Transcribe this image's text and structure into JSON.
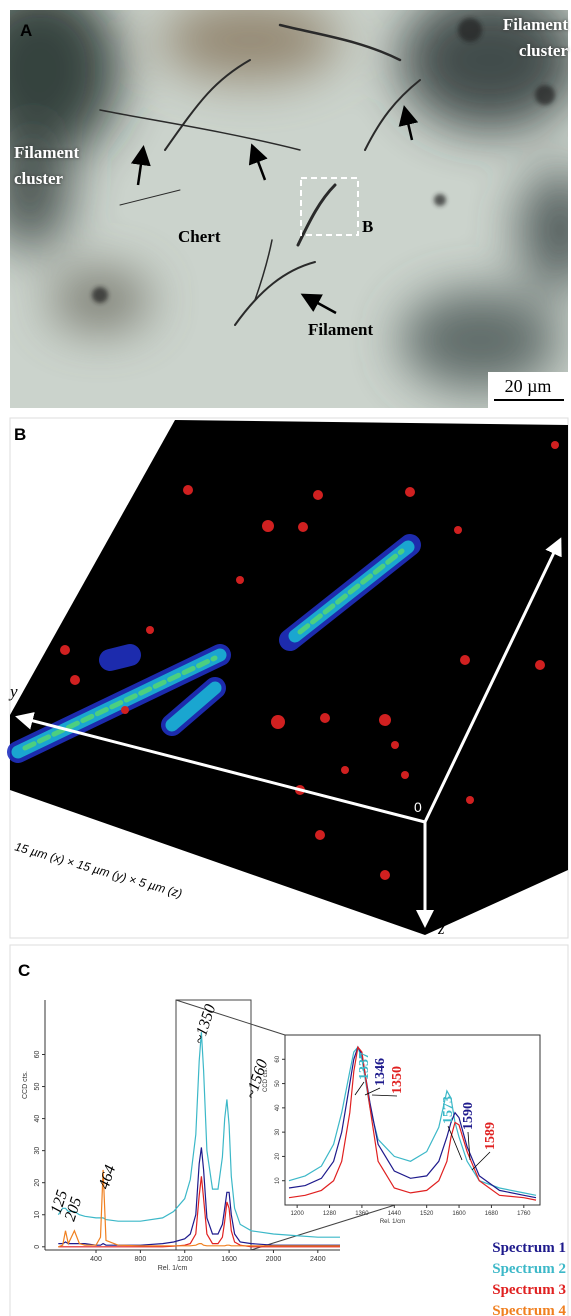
{
  "panel_a": {
    "label": "A",
    "cluster_labels": [
      "Filament cluster",
      "Filament cluster"
    ],
    "chert": "Chert",
    "filament": "Filament",
    "box_label": "B",
    "scale_bar": "20 µm"
  },
  "panel_b": {
    "label": "B",
    "x_axis": "x",
    "y_axis": "y",
    "z_axis": "z",
    "origin": "0",
    "caption": "15 µm (x) × 15 µm (y) × 5 µm (z)"
  },
  "panel_c": {
    "label": "C"
  },
  "chart_data": [
    {
      "type": "line",
      "x_label": "Rel. 1/cm",
      "y_label": "CCD cts.",
      "x": [
        60,
        100,
        125,
        150,
        205,
        250,
        300,
        400,
        440,
        464,
        490,
        600,
        800,
        1000,
        1100,
        1200,
        1250,
        1300,
        1330,
        1350,
        1370,
        1400,
        1450,
        1500,
        1540,
        1560,
        1580,
        1600,
        1620,
        1650,
        1700,
        1800,
        2000,
        2200,
        2400,
        2600
      ],
      "series": [
        {
          "name": "Spectrum 1",
          "color": "#1e1a8c",
          "values": [
            1,
            1,
            1.5,
            1,
            1,
            1,
            1,
            0.5,
            0.5,
            1,
            0.5,
            0.5,
            0.5,
            1,
            1.5,
            2.5,
            4,
            10,
            26,
            31,
            24,
            9,
            4,
            4,
            7,
            12,
            17,
            17,
            10,
            4,
            1.5,
            1,
            0.5,
            0.5,
            0.5,
            0.5
          ]
        },
        {
          "name": "Spectrum 2",
          "color": "#3cb8c8",
          "values": [
            10,
            12,
            12,
            11,
            11,
            10,
            9.5,
            9,
            9,
            9,
            8.5,
            8,
            8,
            9,
            11,
            15,
            21,
            35,
            58,
            67,
            55,
            30,
            18,
            18,
            28,
            40,
            46,
            38,
            22,
            12,
            7,
            5,
            4,
            3.5,
            3,
            3
          ]
        },
        {
          "name": "Spectrum 3",
          "color": "#e02020",
          "values": [
            0,
            0,
            0,
            0,
            0,
            0,
            0,
            0,
            0,
            0,
            0,
            0,
            0,
            0,
            0.2,
            0.5,
            1,
            4,
            16,
            22,
            15,
            4,
            1,
            1,
            3,
            8,
            14,
            12,
            5,
            1.5,
            0.5,
            0,
            0,
            0,
            0,
            0
          ]
        },
        {
          "name": "Spectrum 4",
          "color": "#f08020",
          "values": [
            0,
            0.5,
            5,
            1,
            5,
            1,
            0.5,
            0.5,
            3,
            24,
            2,
            0.5,
            0.3,
            0.3,
            0.3,
            0.3,
            0.3,
            0.5,
            1,
            1,
            0.5,
            0.3,
            0.3,
            0.3,
            0.3,
            0.3,
            0.5,
            0.5,
            0.3,
            0.3,
            0.3,
            0.3,
            0.3,
            0.3,
            0.3,
            0.3
          ]
        }
      ],
      "xlim": [
        -60,
        2600
      ],
      "ylim": [
        -1,
        77
      ],
      "xticks": [
        400,
        800,
        1200,
        1600,
        2000,
        2400
      ],
      "yticks": [
        0,
        10,
        20,
        30,
        40,
        50,
        60
      ],
      "annotations": [
        "125",
        "205",
        "464",
        "~1350",
        "~1560"
      ],
      "legend": "lower right"
    },
    {
      "type": "line",
      "x_label": "Rel. 1/cm",
      "y_label": "CCD cts.",
      "x": [
        1180,
        1220,
        1260,
        1290,
        1310,
        1330,
        1340,
        1350,
        1360,
        1380,
        1400,
        1440,
        1480,
        1520,
        1550,
        1570,
        1580,
        1590,
        1600,
        1620,
        1650,
        1700,
        1760,
        1790
      ],
      "series": [
        {
          "color": "#3cb8c8",
          "values": [
            10,
            12,
            16,
            25,
            38,
            55,
            63,
            65,
            60,
            40,
            27,
            20,
            18,
            22,
            32,
            47,
            44,
            34,
            28,
            18,
            10,
            7,
            5,
            4
          ]
        },
        {
          "color": "#1e1a8c",
          "values": [
            7,
            8,
            11,
            18,
            30,
            50,
            60,
            65,
            62,
            42,
            25,
            14,
            11,
            12,
            18,
            28,
            34,
            38,
            36,
            24,
            12,
            6,
            4,
            3
          ]
        },
        {
          "color": "#e02020",
          "values": [
            3,
            4,
            6,
            10,
            18,
            38,
            55,
            65,
            63,
            40,
            18,
            7,
            5,
            6,
            10,
            18,
            28,
            34,
            33,
            22,
            10,
            4,
            3,
            2
          ]
        }
      ],
      "xlim": [
        1170,
        1800
      ],
      "ylim": [
        0,
        70
      ],
      "xticks": [
        1200,
        1280,
        1360,
        1440,
        1520,
        1600,
        1680,
        1760
      ],
      "yticks": [
        10,
        20,
        30,
        40,
        50,
        60
      ],
      "annotations": [
        {
          "text": "1337",
          "color": "#3cb8c8"
        },
        {
          "text": "1346",
          "color": "#1e1a8c"
        },
        {
          "text": "1350",
          "color": "#e02020"
        },
        {
          "text": "1573",
          "color": "#3cb8c8"
        },
        {
          "text": "1590",
          "color": "#1e1a8c"
        },
        {
          "text": "1589",
          "color": "#e02020"
        }
      ]
    }
  ]
}
